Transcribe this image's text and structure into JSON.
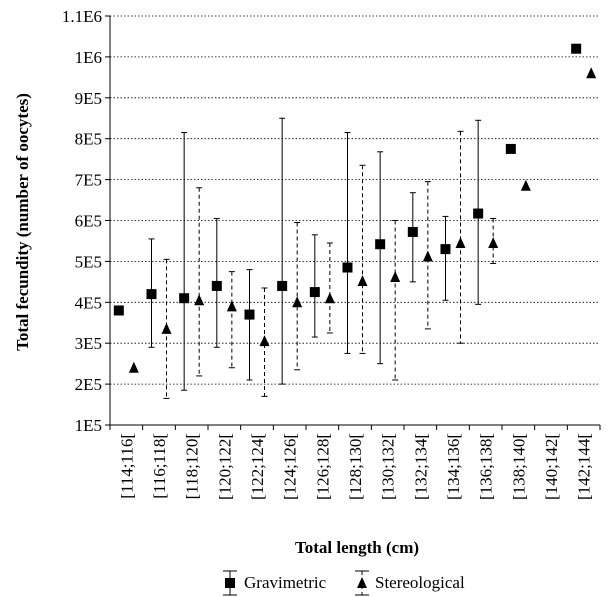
{
  "chart_data": {
    "type": "scatter",
    "title": "",
    "xlabel": "Total length (cm)",
    "ylabel": "Total fecundity (number of oocytes)",
    "categories": [
      "[114;116[",
      "[116;118[",
      "[118;120[",
      "[120;122[",
      "[122;124[",
      "[124;126[",
      "[126;128[",
      "[128;130[",
      "[130;132[",
      "[132;134[",
      "[134;136[",
      "[136;138[",
      "[138;140[",
      "[140;142[",
      "[142;144["
    ],
    "y_ticks": [
      "1E5",
      "2E5",
      "3E5",
      "4E5",
      "5E5",
      "6E5",
      "7E5",
      "8E5",
      "9E5",
      "1E6",
      "1.1E6"
    ],
    "ylim": [
      100000,
      1100000
    ],
    "grid": "horizontal dotted",
    "legend_position": "bottom",
    "series": [
      {
        "name": "Gravimetric",
        "marker": "square",
        "line_style": "solid",
        "values": [
          380000,
          420000,
          410000,
          440000,
          370000,
          440000,
          425000,
          485000,
          542000,
          572000,
          530000,
          617000,
          775000,
          null,
          1020000
        ],
        "upper": [
          null,
          555000,
          815000,
          605000,
          480000,
          850000,
          565000,
          815000,
          768000,
          668000,
          610000,
          845000,
          null,
          null,
          null
        ],
        "lower": [
          null,
          290000,
          185000,
          290000,
          210000,
          200000,
          315000,
          275000,
          250000,
          450000,
          405000,
          395000,
          null,
          null,
          null
        ]
      },
      {
        "name": "Stereological",
        "marker": "triangle",
        "line_style": "dashed",
        "values": [
          240000,
          335000,
          405000,
          390000,
          305000,
          400000,
          410000,
          452000,
          462000,
          512000,
          545000,
          545000,
          685000,
          null,
          960000
        ],
        "upper": [
          null,
          505000,
          680000,
          475000,
          435000,
          595000,
          545000,
          735000,
          600000,
          695000,
          818000,
          605000,
          null,
          null,
          null
        ],
        "lower": [
          null,
          165000,
          220000,
          240000,
          170000,
          235000,
          325000,
          275000,
          210000,
          335000,
          300000,
          495000,
          null,
          null,
          null
        ]
      }
    ]
  }
}
